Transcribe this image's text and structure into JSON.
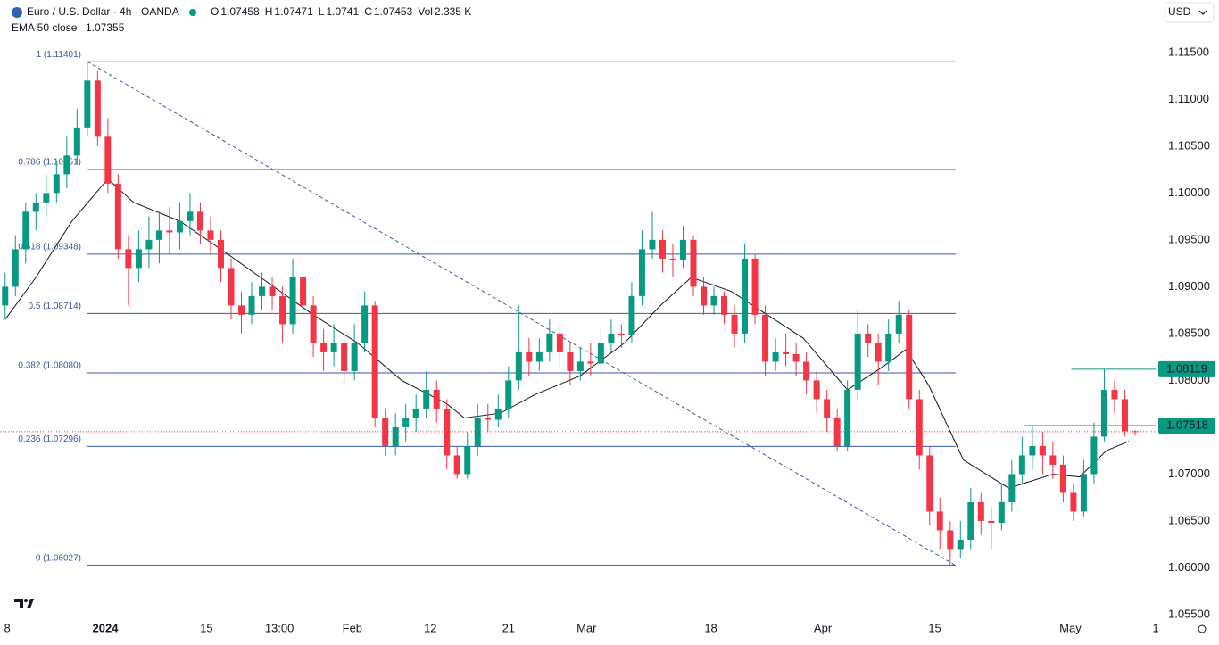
{
  "chart_data": {
    "type": "candlestick",
    "title": "Euro / U.S. Dollar · 4h · OANDA",
    "currency": "USD",
    "ohlc_header": [
      {
        "label": "O",
        "value": 1.07458
      },
      {
        "label": "H",
        "value": 1.07471
      },
      {
        "label": "L",
        "value": 1.0741
      },
      {
        "label": "C",
        "value": 1.07453
      },
      {
        "label": "Vol",
        "value": "2.335 K"
      }
    ],
    "up_color": "#089981",
    "down_color": "#f23645",
    "candles": [
      [
        1.088,
        1.0915,
        1.0865,
        1.09
      ],
      [
        1.09,
        1.0955,
        1.089,
        1.094
      ],
      [
        1.094,
        1.099,
        1.0925,
        1.098
      ],
      [
        1.098,
        1.1,
        1.096,
        1.099
      ],
      [
        1.099,
        1.102,
        1.0975,
        1.1
      ],
      [
        1.1,
        1.1035,
        1.099,
        1.102
      ],
      [
        1.102,
        1.106,
        1.1005,
        1.104
      ],
      [
        1.104,
        1.109,
        1.103,
        1.107
      ],
      [
        1.107,
        1.11401,
        1.106,
        1.112
      ],
      [
        1.112,
        1.113,
        1.105,
        1.106
      ],
      [
        1.106,
        1.108,
        1.1,
        1.101
      ],
      [
        1.101,
        1.102,
        1.093,
        1.094
      ],
      [
        1.094,
        1.0955,
        1.088,
        1.092
      ],
      [
        1.092,
        1.096,
        1.0905,
        1.094
      ],
      [
        1.094,
        1.0975,
        1.092,
        1.095
      ],
      [
        1.095,
        1.098,
        1.0925,
        1.096
      ],
      [
        1.096,
        1.0985,
        1.0935,
        1.0958
      ],
      [
        1.0958,
        1.099,
        1.094,
        1.097
      ],
      [
        1.097,
        1.1,
        1.0955,
        1.098
      ],
      [
        1.098,
        1.099,
        1.0945,
        1.096
      ],
      [
        1.096,
        1.0975,
        1.0935,
        1.095
      ],
      [
        1.095,
        1.096,
        1.0905,
        1.092
      ],
      [
        1.092,
        1.093,
        1.0865,
        1.088
      ],
      [
        1.088,
        1.0895,
        1.085,
        1.087
      ],
      [
        1.087,
        1.0905,
        1.086,
        1.089
      ],
      [
        1.089,
        1.0915,
        1.0875,
        1.09
      ],
      [
        1.09,
        1.091,
        1.0875,
        1.089
      ],
      [
        1.089,
        1.09,
        1.084,
        1.086
      ],
      [
        1.086,
        1.093,
        1.085,
        1.091
      ],
      [
        1.091,
        1.092,
        1.0865,
        1.088
      ],
      [
        1.088,
        1.089,
        1.0825,
        1.084
      ],
      [
        1.084,
        1.0855,
        1.081,
        1.083
      ],
      [
        1.083,
        1.086,
        1.0815,
        1.084
      ],
      [
        1.084,
        1.085,
        1.0795,
        1.081
      ],
      [
        1.081,
        1.086,
        1.08,
        1.084
      ],
      [
        1.084,
        1.0895,
        1.083,
        1.088
      ],
      [
        1.088,
        1.0885,
        1.075,
        1.076
      ],
      [
        1.076,
        1.077,
        1.072,
        1.073
      ],
      [
        1.073,
        1.0765,
        1.072,
        1.075
      ],
      [
        1.075,
        1.0775,
        1.0735,
        1.076
      ],
      [
        1.076,
        1.0785,
        1.0745,
        1.077
      ],
      [
        1.077,
        1.081,
        1.076,
        1.079
      ],
      [
        1.079,
        1.08,
        1.0755,
        1.077
      ],
      [
        1.077,
        1.078,
        1.0705,
        1.072
      ],
      [
        1.072,
        1.073,
        1.0695,
        1.07
      ],
      [
        1.07,
        1.0745,
        1.0695,
        1.073
      ],
      [
        1.073,
        1.0775,
        1.072,
        1.076
      ],
      [
        1.076,
        1.0775,
        1.0745,
        1.0758
      ],
      [
        1.0758,
        1.0785,
        1.075,
        1.077
      ],
      [
        1.077,
        1.0815,
        1.076,
        1.08
      ],
      [
        1.08,
        1.088,
        1.079,
        1.083
      ],
      [
        1.083,
        1.0845,
        1.0805,
        1.082
      ],
      [
        1.082,
        1.0845,
        1.081,
        1.083
      ],
      [
        1.083,
        1.0865,
        1.082,
        1.085
      ],
      [
        1.085,
        1.086,
        1.0815,
        1.083
      ],
      [
        1.083,
        1.084,
        1.0795,
        1.081
      ],
      [
        1.081,
        1.0835,
        1.08,
        1.082
      ],
      [
        1.082,
        1.084,
        1.0805,
        1.0818
      ],
      [
        1.0818,
        1.0855,
        1.081,
        1.084
      ],
      [
        1.084,
        1.0865,
        1.083,
        1.085
      ],
      [
        1.085,
        1.086,
        1.0835,
        1.0848
      ],
      [
        1.0848,
        1.0905,
        1.084,
        1.089
      ],
      [
        1.089,
        1.096,
        1.088,
        1.094
      ],
      [
        1.094,
        1.098,
        1.093,
        1.095
      ],
      [
        1.095,
        1.096,
        1.0915,
        1.093
      ],
      [
        1.093,
        1.0945,
        1.091,
        1.0928
      ],
      [
        1.0928,
        1.0965,
        1.092,
        1.095
      ],
      [
        1.095,
        1.0955,
        1.089,
        1.09
      ],
      [
        1.09,
        1.091,
        1.087,
        1.088
      ],
      [
        1.088,
        1.09,
        1.087,
        1.089
      ],
      [
        1.089,
        1.0895,
        1.086,
        1.087
      ],
      [
        1.087,
        1.088,
        1.0835,
        1.085
      ],
      [
        1.085,
        1.0945,
        1.084,
        1.093
      ],
      [
        1.093,
        1.0935,
        1.086,
        1.087
      ],
      [
        1.087,
        1.088,
        1.0805,
        1.082
      ],
      [
        1.082,
        1.0845,
        1.081,
        1.083
      ],
      [
        1.083,
        1.085,
        1.0815,
        1.0828
      ],
      [
        1.0828,
        1.084,
        1.0805,
        1.082
      ],
      [
        1.082,
        1.083,
        1.0785,
        1.08
      ],
      [
        1.08,
        1.081,
        1.0765,
        1.078
      ],
      [
        1.078,
        1.079,
        1.0745,
        1.076
      ],
      [
        1.076,
        1.077,
        1.0725,
        1.073
      ],
      [
        1.073,
        1.08,
        1.0725,
        1.079
      ],
      [
        1.079,
        1.0875,
        1.078,
        1.085
      ],
      [
        1.085,
        1.086,
        1.0825,
        1.084
      ],
      [
        1.084,
        1.085,
        1.0795,
        1.082
      ],
      [
        1.082,
        1.0865,
        1.081,
        1.085
      ],
      [
        1.085,
        1.0885,
        1.084,
        1.087
      ],
      [
        1.087,
        1.0875,
        1.077,
        1.078
      ],
      [
        1.078,
        1.079,
        1.0705,
        1.072
      ],
      [
        1.072,
        1.073,
        1.0645,
        1.066
      ],
      [
        1.066,
        1.0675,
        1.062,
        1.064
      ],
      [
        1.064,
        1.065,
        1.06027,
        1.062
      ],
      [
        1.062,
        1.065,
        1.061,
        1.063
      ],
      [
        1.063,
        1.0685,
        1.062,
        1.067
      ],
      [
        1.067,
        1.068,
        1.0635,
        1.065
      ],
      [
        1.065,
        1.0665,
        1.062,
        1.0648
      ],
      [
        1.0648,
        1.069,
        1.064,
        1.067
      ],
      [
        1.067,
        1.0715,
        1.066,
        1.07
      ],
      [
        1.07,
        1.074,
        1.069,
        1.072
      ],
      [
        1.072,
        1.0752,
        1.0705,
        1.073
      ],
      [
        1.073,
        1.0745,
        1.07,
        1.072
      ],
      [
        1.072,
        1.0735,
        1.0695,
        1.071
      ],
      [
        1.071,
        1.072,
        1.067,
        1.068
      ],
      [
        1.068,
        1.069,
        1.065,
        1.066
      ],
      [
        1.066,
        1.0715,
        1.0655,
        1.07
      ],
      [
        1.07,
        1.0755,
        1.069,
        1.074
      ],
      [
        1.074,
        1.08119,
        1.0735,
        1.079
      ],
      [
        1.079,
        1.08,
        1.0765,
        1.078
      ],
      [
        1.078,
        1.079,
        1.074,
        1.07458
      ],
      [
        1.07458,
        1.07471,
        1.0741,
        1.07453
      ]
    ],
    "ema": {
      "name": "EMA 50 close",
      "last_value": 1.07355,
      "color": "#131722",
      "x": [
        0,
        3,
        6.5,
        10,
        12.5,
        17,
        21,
        25.5,
        30,
        34.3,
        38.6,
        43,
        44.7,
        48.2,
        51.6,
        56,
        60.3,
        63.8,
        66.8,
        70.7,
        74.2,
        77.7,
        82,
        85.5,
        87.7,
        89.9,
        93.3,
        97.7,
        102,
        104.6,
        107.2,
        109.4
      ],
      "values": [
        1.0865,
        1.091,
        1.097,
        1.1015,
        1.099,
        1.097,
        1.094,
        1.0905,
        1.087,
        1.084,
        1.08,
        1.0775,
        1.076,
        1.0765,
        1.0785,
        1.0805,
        1.084,
        1.088,
        1.091,
        1.0895,
        1.087,
        1.0845,
        1.079,
        1.0815,
        1.0833,
        1.0795,
        1.0715,
        1.0685,
        1.07,
        1.0697,
        1.0725,
        1.0735
      ]
    },
    "fib_color": "#3a56a3",
    "fib_levels": [
      {
        "label": "1 (1.11401)",
        "value": 1.11401
      },
      {
        "label": "0.786 (1.10251)",
        "value": 1.10251
      },
      {
        "label": "0.618 (1.09348)",
        "value": 1.09348
      },
      {
        "label": "0.5 (1.08714)",
        "value": 1.08714
      },
      {
        "label": "0.382 (1.08080)",
        "value": 1.0808
      },
      {
        "label": "0.236 (1.07296)",
        "value": 1.07296
      },
      {
        "label": "0 (1.06027)",
        "value": 1.06027
      }
    ],
    "price_lines": [
      {
        "value": 1.08119,
        "color": "#089981"
      },
      {
        "value": 1.07518,
        "color": "#089981"
      }
    ],
    "current_price": 1.07453,
    "ylim": [
      1.055,
      1.1206
    ],
    "yticks": [
      {
        "value": 1.055,
        "label": "1.05500"
      },
      {
        "value": 1.06,
        "label": "1.06000"
      },
      {
        "value": 1.065,
        "label": "1.06500"
      },
      {
        "value": 1.07,
        "label": "1.07000"
      },
      {
        "value": 1.075,
        "label": "1.07500"
      },
      {
        "value": 1.08,
        "label": "1.08000"
      },
      {
        "value": 1.085,
        "label": "1.08500"
      },
      {
        "value": 1.09,
        "label": "1.09000"
      },
      {
        "value": 1.095,
        "label": "1.09500"
      },
      {
        "value": 1.1,
        "label": "1.10000"
      },
      {
        "value": 1.105,
        "label": "1.10500"
      },
      {
        "value": 1.11,
        "label": "1.11000"
      },
      {
        "value": 1.115,
        "label": "1.11500"
      }
    ],
    "xlim": [
      -0.5,
      112
    ],
    "xticks": [
      {
        "value": 0.2,
        "label": "8"
      },
      {
        "value": 9.75,
        "label": "2024"
      },
      {
        "value": 19.6,
        "label": "15"
      },
      {
        "value": 26.7,
        "label": "13:00"
      },
      {
        "value": 33.8,
        "label": "Feb"
      },
      {
        "value": 41.4,
        "label": "12"
      },
      {
        "value": 49,
        "label": "21"
      },
      {
        "value": 56.6,
        "label": "Mar"
      },
      {
        "value": 68.7,
        "label": "18"
      },
      {
        "value": 79.6,
        "label": "Apr"
      },
      {
        "value": 90.5,
        "label": "15"
      },
      {
        "value": 103.7,
        "label": "May"
      },
      {
        "value": 112,
        "label": "1"
      }
    ]
  }
}
